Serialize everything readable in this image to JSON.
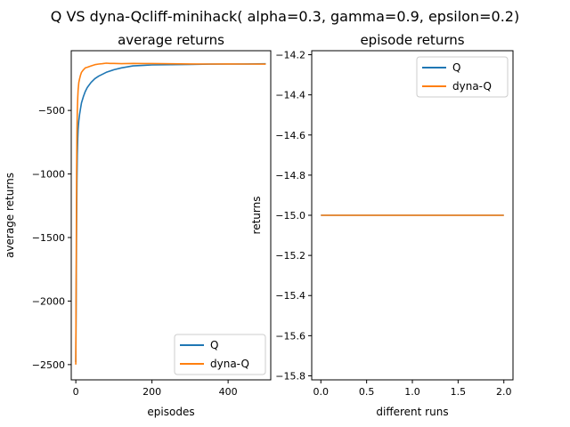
{
  "figure": {
    "suptitle": "Q VS dyna-Qcliff-minihack( alpha=0.3, gamma=0.9, epsilon=0.2)"
  },
  "colors": {
    "Q": "#1f77b4",
    "dyna-Q": "#ff7f0e"
  },
  "chart_data": [
    {
      "type": "line",
      "title": "average returns",
      "xlabel": "episodes",
      "ylabel": "average returns",
      "xlim": [
        -12,
        512
      ],
      "ylim": [
        -2620,
        -30
      ],
      "xticks": [
        0,
        200,
        400
      ],
      "yticks": [
        -2500,
        -2000,
        -1500,
        -1000,
        -500
      ],
      "ytick_labels": [
        "−2500",
        "−2000",
        "−1500",
        "−1000",
        "−500"
      ],
      "legend": "lower-right",
      "series": [
        {
          "name": "Q",
          "x": [
            0,
            1,
            2,
            3,
            4,
            5,
            6,
            8,
            10,
            12,
            15,
            20,
            25,
            30,
            40,
            50,
            60,
            70,
            80,
            100,
            120,
            150,
            180,
            200,
            250,
            300,
            350,
            400,
            450,
            499
          ],
          "y": [
            -2480,
            -1900,
            -1400,
            -1050,
            -850,
            -720,
            -650,
            -580,
            -530,
            -490,
            -440,
            -390,
            -350,
            -320,
            -280,
            -250,
            -230,
            -215,
            -200,
            -180,
            -165,
            -150,
            -145,
            -142,
            -140,
            -138,
            -136,
            -135,
            -134,
            -133
          ]
        },
        {
          "name": "dyna-Q",
          "x": [
            0,
            1,
            2,
            3,
            4,
            5,
            6,
            8,
            10,
            12,
            15,
            20,
            25,
            30,
            40,
            50,
            60,
            70,
            80,
            90,
            100,
            120,
            150,
            180,
            200,
            250,
            300,
            350,
            400,
            450,
            499
          ],
          "y": [
            -2500,
            -1700,
            -1000,
            -680,
            -500,
            -400,
            -340,
            -280,
            -250,
            -225,
            -200,
            -180,
            -165,
            -160,
            -150,
            -140,
            -135,
            -132,
            -128,
            -130,
            -130,
            -132,
            -130,
            -131,
            -131,
            -133,
            -134,
            -135,
            -134,
            -135,
            -136
          ]
        }
      ]
    },
    {
      "type": "line",
      "title": "episode returns",
      "xlabel": "different runs",
      "ylabel": "returns",
      "xlim": [
        -0.1,
        2.1
      ],
      "ylim": [
        -15.82,
        -14.18
      ],
      "xticks": [
        0.0,
        0.5,
        1.0,
        1.5,
        2.0
      ],
      "xtick_labels": [
        "0.0",
        "0.5",
        "1.0",
        "1.5",
        "2.0"
      ],
      "yticks": [
        -14.2,
        -14.4,
        -14.6,
        -14.8,
        -15.0,
        -15.2,
        -15.4,
        -15.6,
        -15.8
      ],
      "ytick_labels": [
        "−14.2",
        "−14.4",
        "−14.6",
        "−14.8",
        "−15.0",
        "−15.2",
        "−15.4",
        "−15.6",
        "−15.8"
      ],
      "legend": "top-right",
      "series": [
        {
          "name": "Q",
          "x": [
            0,
            1,
            2
          ],
          "y": [
            -15,
            -15,
            -15
          ]
        },
        {
          "name": "dyna-Q",
          "x": [
            0,
            1,
            2
          ],
          "y": [
            -15,
            -15,
            -15
          ]
        }
      ]
    }
  ]
}
